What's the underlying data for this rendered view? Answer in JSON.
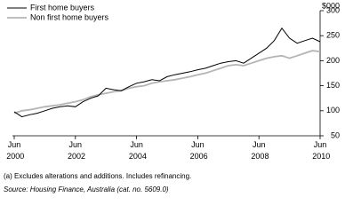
{
  "chart_data": {
    "type": "line",
    "y_label": "$000",
    "x": [
      "Jun 2000",
      "Sep 2000",
      "Dec 2000",
      "Mar 2001",
      "Jun 2001",
      "Sep 2001",
      "Dec 2001",
      "Mar 2002",
      "Jun 2002",
      "Sep 2002",
      "Dec 2002",
      "Mar 2003",
      "Jun 2003",
      "Sep 2003",
      "Dec 2003",
      "Mar 2004",
      "Jun 2004",
      "Sep 2004",
      "Dec 2004",
      "Mar 2005",
      "Jun 2005",
      "Sep 2005",
      "Dec 2005",
      "Mar 2006",
      "Jun 2006",
      "Sep 2006",
      "Dec 2006",
      "Mar 2007",
      "Jun 2007",
      "Sep 2007",
      "Dec 2007",
      "Mar 2008",
      "Jun 2008",
      "Sep 2008",
      "Dec 2008",
      "Mar 2009",
      "Jun 2009",
      "Sep 2009",
      "Dec 2009",
      "Mar 2010",
      "Jun 2010"
    ],
    "series": [
      {
        "name": "First home buyers",
        "color": "#000000",
        "values": [
          98,
          88,
          92,
          95,
          100,
          105,
          108,
          110,
          108,
          118,
          125,
          130,
          145,
          142,
          140,
          148,
          155,
          158,
          162,
          160,
          168,
          172,
          175,
          178,
          182,
          185,
          190,
          195,
          198,
          200,
          195,
          205,
          215,
          225,
          240,
          265,
          245,
          235,
          240,
          245,
          238
        ]
      },
      {
        "name": "Non first home buyers",
        "color": "#b4b4b4",
        "values": [
          95,
          100,
          102,
          105,
          108,
          110,
          112,
          115,
          118,
          122,
          128,
          132,
          135,
          138,
          140,
          145,
          148,
          150,
          155,
          158,
          160,
          162,
          165,
          168,
          172,
          175,
          180,
          185,
          190,
          192,
          190,
          195,
          200,
          205,
          208,
          210,
          205,
          210,
          215,
          220,
          218
        ]
      }
    ],
    "ylim": [
      50,
      300
    ],
    "yticks": [
      50,
      100,
      150,
      200,
      250,
      300
    ],
    "xticks": [
      "Jun 2000",
      "Jun 2002",
      "Jun 2004",
      "Jun 2006",
      "Jun 2008",
      "Jun 2010"
    ],
    "notes": [
      "(a) Excludes alterations and additions. Includes refinancing.",
      "Source: Housing Finance, Australia (cat. no. 5609.0)"
    ]
  }
}
